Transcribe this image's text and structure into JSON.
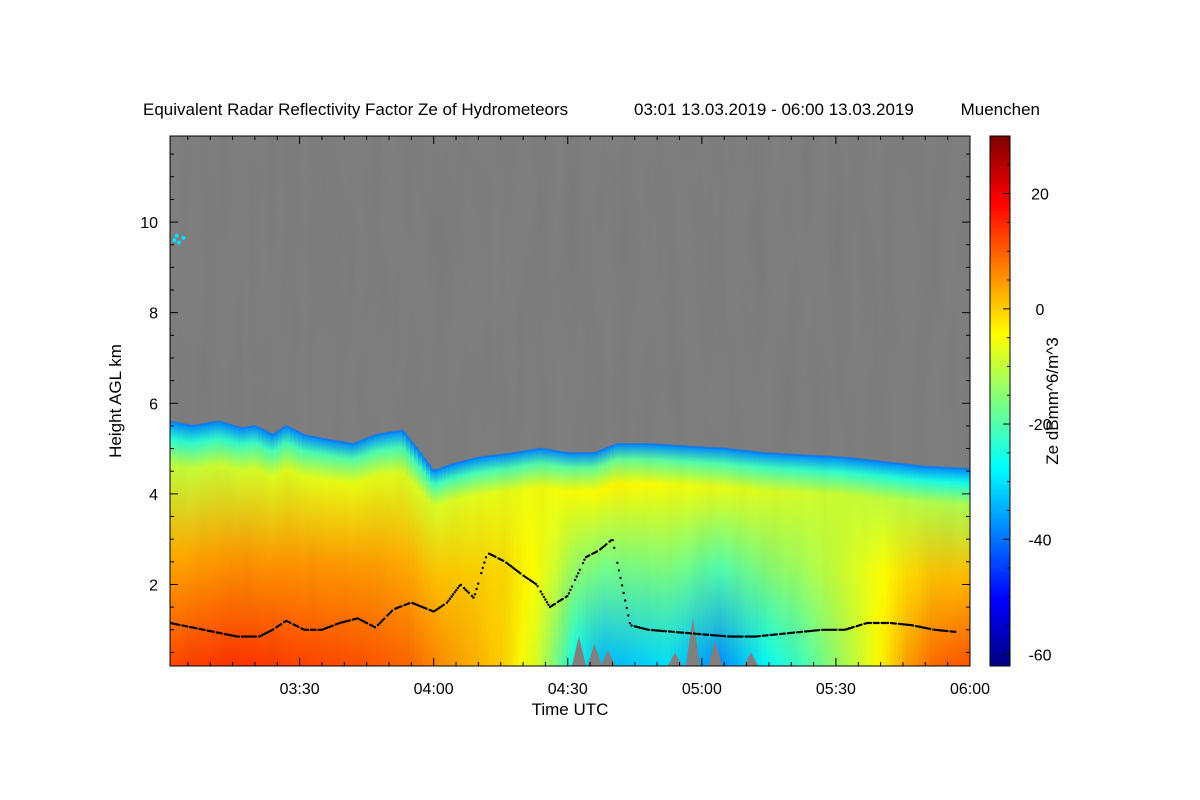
{
  "chart_data": {
    "type": "heatmap",
    "title": "Equivalent Radar Reflectivity Factor Ze of Hydrometeors",
    "period": "03:01 13.03.2019 - 06:00 13.03.2019",
    "location": "Muenchen",
    "xlabel": "Time UTC",
    "ylabel": "Height AGL km",
    "colorbar_label": "Ze dBmm^6/m^3",
    "x_range_minutes_utc": [
      181,
      360
    ],
    "y_range_km": [
      0.2,
      11.9
    ],
    "colorbar_range": [
      -62,
      30
    ],
    "x_ticks": [
      {
        "minute": 210,
        "label": "03:30"
      },
      {
        "minute": 240,
        "label": "04:00"
      },
      {
        "minute": 270,
        "label": "04:30"
      },
      {
        "minute": 300,
        "label": "05:00"
      },
      {
        "minute": 330,
        "label": "05:30"
      },
      {
        "minute": 360,
        "label": "06:00"
      }
    ],
    "y_ticks": [
      {
        "km": 2,
        "label": "2"
      },
      {
        "km": 4,
        "label": "4"
      },
      {
        "km": 6,
        "label": "6"
      },
      {
        "km": 8,
        "label": "8"
      },
      {
        "km": 10,
        "label": "10"
      }
    ],
    "colorbar_ticks": [
      {
        "value": 20,
        "label": "20"
      },
      {
        "value": 0,
        "label": "0"
      },
      {
        "value": -20,
        "label": "-20"
      },
      {
        "value": -40,
        "label": "-40"
      },
      {
        "value": -60,
        "label": "-60"
      }
    ],
    "colormap": [
      "#00007f",
      "#0000ff",
      "#007fff",
      "#00ffff",
      "#7fff7f",
      "#ffff00",
      "#ff7f00",
      "#ff0000",
      "#7f0000"
    ],
    "no_signal_color": "#808080",
    "echo_top_km": [
      [
        181,
        5.6
      ],
      [
        186,
        5.5
      ],
      [
        192,
        5.6
      ],
      [
        197,
        5.45
      ],
      [
        200,
        5.5
      ],
      [
        204,
        5.3
      ],
      [
        207,
        5.5
      ],
      [
        211,
        5.3
      ],
      [
        216,
        5.2
      ],
      [
        222,
        5.1
      ],
      [
        227,
        5.3
      ],
      [
        233,
        5.4
      ],
      [
        237,
        4.9
      ],
      [
        240,
        4.5
      ],
      [
        244,
        4.65
      ],
      [
        250,
        4.8
      ],
      [
        258,
        4.9
      ],
      [
        264,
        5.0
      ],
      [
        270,
        4.9
      ],
      [
        276,
        4.9
      ],
      [
        281,
        5.1
      ],
      [
        288,
        5.1
      ],
      [
        296,
        5.05
      ],
      [
        305,
        5.0
      ],
      [
        314,
        4.9
      ],
      [
        323,
        4.85
      ],
      [
        332,
        4.8
      ],
      [
        341,
        4.7
      ],
      [
        350,
        4.6
      ],
      [
        360,
        4.55
      ]
    ],
    "base_reflectivity_dbz": [
      [
        181,
        12
      ],
      [
        195,
        14
      ],
      [
        205,
        13
      ],
      [
        215,
        12
      ],
      [
        225,
        11
      ],
      [
        235,
        9
      ],
      [
        245,
        4
      ],
      [
        255,
        0
      ],
      [
        263,
        -8
      ],
      [
        268,
        -18
      ],
      [
        272,
        -28
      ],
      [
        278,
        -34
      ],
      [
        285,
        -32
      ],
      [
        292,
        -30
      ],
      [
        298,
        -34
      ],
      [
        304,
        -38
      ],
      [
        310,
        -32
      ],
      [
        316,
        -26
      ],
      [
        322,
        -22
      ],
      [
        328,
        -16
      ],
      [
        334,
        -10
      ],
      [
        340,
        -4
      ],
      [
        346,
        4
      ],
      [
        352,
        9
      ],
      [
        360,
        11
      ]
    ],
    "upper_reflectivity_dbz": [
      [
        181,
        -10
      ],
      [
        200,
        -8
      ],
      [
        220,
        -6
      ],
      [
        240,
        -8
      ],
      [
        260,
        -6
      ],
      [
        280,
        -4
      ],
      [
        300,
        -6
      ],
      [
        320,
        -8
      ],
      [
        340,
        -10
      ],
      [
        360,
        -12
      ]
    ],
    "cloud_base_km": [
      [
        181,
        1.15
      ],
      [
        186,
        1.05
      ],
      [
        191,
        0.95
      ],
      [
        196,
        0.85
      ],
      [
        201,
        0.85
      ],
      [
        204,
        1.0
      ],
      [
        207,
        1.2
      ],
      [
        211,
        1.0
      ],
      [
        215,
        1.0
      ],
      [
        219,
        1.15
      ],
      [
        223,
        1.25
      ],
      [
        227,
        1.05
      ],
      [
        231,
        1.45
      ],
      [
        235,
        1.6
      ],
      [
        240,
        1.4
      ],
      [
        243,
        1.6
      ],
      [
        246,
        2.0
      ],
      [
        249,
        1.7
      ],
      [
        252,
        2.7
      ],
      [
        256,
        2.5
      ],
      [
        260,
        2.2
      ],
      [
        263,
        2.0
      ],
      [
        266,
        1.5
      ],
      [
        270,
        1.75
      ],
      [
        274,
        2.6
      ],
      [
        277,
        2.75
      ],
      [
        280,
        3.0
      ],
      [
        284,
        1.1
      ],
      [
        288,
        1.0
      ],
      [
        294,
        0.95
      ],
      [
        300,
        0.9
      ],
      [
        306,
        0.85
      ],
      [
        312,
        0.85
      ],
      [
        317,
        0.9
      ],
      [
        322,
        0.95
      ],
      [
        327,
        1.0
      ],
      [
        332,
        1.0
      ],
      [
        337,
        1.15
      ],
      [
        342,
        1.15
      ],
      [
        347,
        1.1
      ],
      [
        352,
        1.0
      ],
      [
        357,
        0.95
      ]
    ],
    "sparse_echo_points": [
      [
        182,
        9.6
      ],
      [
        183,
        9.55
      ],
      [
        184,
        9.65
      ],
      [
        182.5,
        9.7
      ]
    ]
  }
}
